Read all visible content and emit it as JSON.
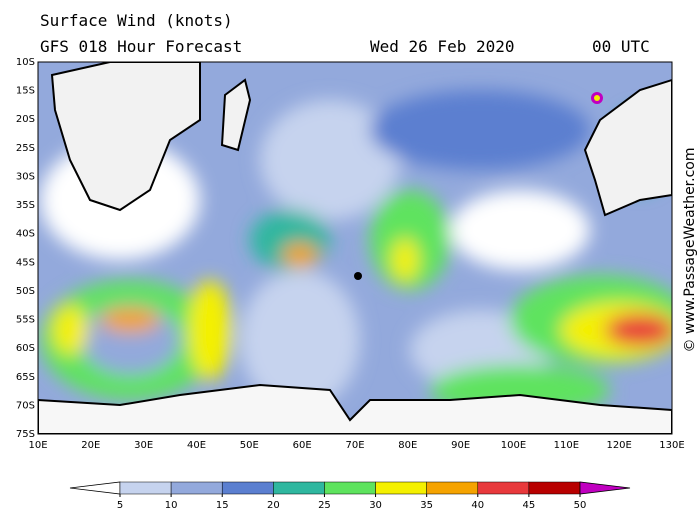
{
  "header": {
    "title": "Surface Wind (knots)",
    "model": "GFS 018 Hour Forecast",
    "date": "Wed 26 Feb 2020",
    "time": "00 UTC"
  },
  "lat_labels": [
    "10S",
    "15S",
    "20S",
    "25S",
    "30S",
    "35S",
    "40S",
    "45S",
    "50S",
    "55S",
    "60S",
    "65S",
    "70S",
    "75S"
  ],
  "lon_labels": [
    "10E",
    "20E",
    "30E",
    "40E",
    "50E",
    "60E",
    "70E",
    "80E",
    "90E",
    "100E",
    "110E",
    "120E",
    "130E"
  ],
  "colorbar": {
    "ticks": [
      5,
      10,
      15,
      20,
      25,
      30,
      35,
      40,
      45,
      50
    ],
    "colors": [
      "#ffffff",
      "#c6d3ee",
      "#93a9dc",
      "#5b7fd0",
      "#2fb79f",
      "#5ee35e",
      "#f4f000",
      "#f5a300",
      "#e8393c",
      "#b80000",
      "#c000c0"
    ]
  },
  "watermark": "© www.PassageWeather.com"
}
